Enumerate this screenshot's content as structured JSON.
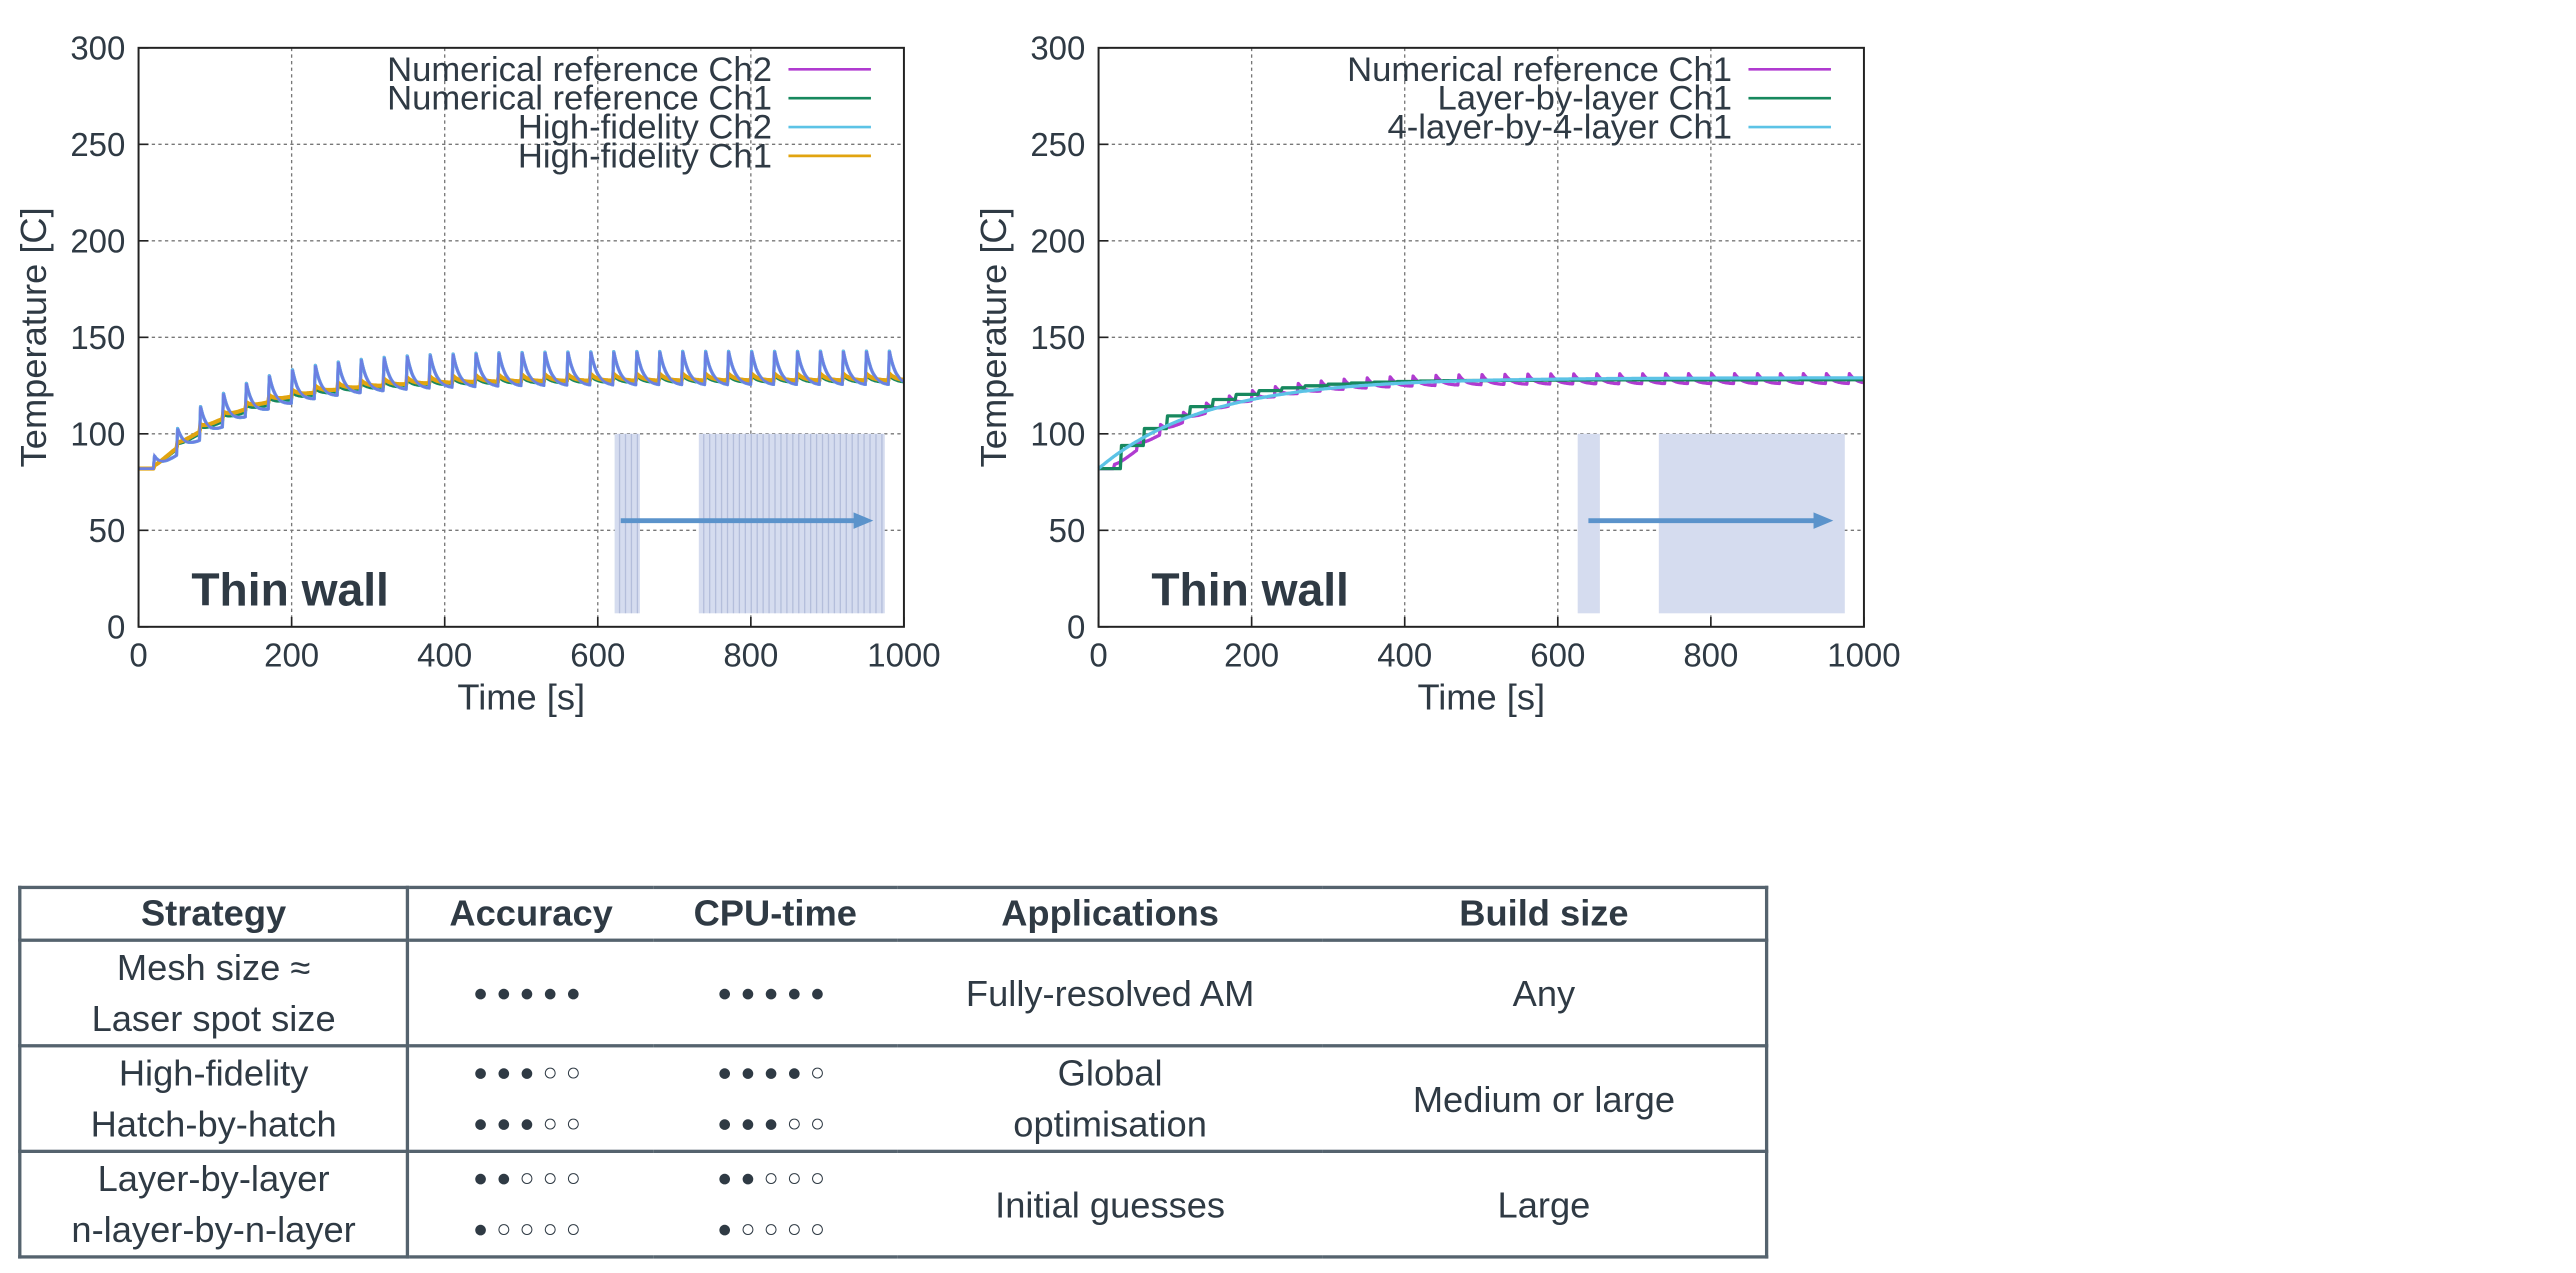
{
  "colors": {
    "purple": "#b03bd0",
    "green": "#17885e",
    "cyan": "#5cc3e6",
    "orange": "#e1a410",
    "blue_trace": "#6b7fe2",
    "highlight_fill": "#d5dcef",
    "arrow": "#5b93cb",
    "text": "#2f3a44"
  },
  "chart_data": [
    {
      "type": "line",
      "xlabel": "Time [s]",
      "ylabel": "Temperature [C]",
      "xlim": [
        0,
        1000
      ],
      "ylim": [
        0,
        300
      ],
      "xticks": [
        0,
        200,
        400,
        600,
        800,
        1000
      ],
      "yticks": [
        0,
        50,
        100,
        150,
        200,
        250,
        300
      ],
      "grid": true,
      "legend_position": "top-right",
      "annotation": "Thin wall",
      "inset": {
        "arrow_from": 630,
        "arrow_to": 960,
        "blocks": [
          [
            622,
            655
          ],
          [
            732,
            975
          ]
        ],
        "block_lines": true
      },
      "series": [
        {
          "name": "Numerical reference Ch2",
          "color": "purple",
          "width": 2,
          "model": {
            "start": 82,
            "plateau": 132,
            "tau": 110,
            "peak_amp": 20,
            "period": 30,
            "t0": 20
          }
        },
        {
          "name": "Numerical reference Ch1",
          "color": "green",
          "width": 2,
          "model": {
            "start": 82,
            "plateau": 128,
            "tau": 110,
            "peak_amp": 4,
            "period": 30,
            "t0": 20
          }
        },
        {
          "name": "High-fidelity Ch2",
          "color": "cyan",
          "width": 2,
          "model": {
            "start": 82,
            "plateau": 132,
            "tau": 110,
            "peak_amp": 20,
            "period": 30,
            "t0": 20
          }
        },
        {
          "name": "High-fidelity Ch1",
          "color": "orange",
          "width": 2.5,
          "model": {
            "start": 82,
            "plateau": 129,
            "tau": 105,
            "peak_amp": 4,
            "period": 30,
            "t0": 20
          }
        }
      ]
    },
    {
      "type": "line",
      "xlabel": "Time [s]",
      "ylabel": "Temperature [C]",
      "xlim": [
        0,
        1000
      ],
      "ylim": [
        0,
        300
      ],
      "xticks": [
        0,
        200,
        400,
        600,
        800,
        1000
      ],
      "yticks": [
        0,
        50,
        100,
        150,
        200,
        250,
        300
      ],
      "grid": true,
      "legend_position": "top-right",
      "annotation": "Thin wall",
      "inset": {
        "arrow_from": 640,
        "arrow_to": 960,
        "blocks": [
          [
            626,
            655
          ],
          [
            732,
            975
          ]
        ],
        "block_lines": false
      },
      "series": [
        {
          "name": "Numerical reference Ch1",
          "color": "purple",
          "width": 2,
          "model": {
            "start": 82,
            "plateau": 128,
            "tau": 110,
            "peak_amp": 6,
            "period": 30,
            "t0": 20
          }
        },
        {
          "name": "Layer-by-layer Ch1",
          "color": "green",
          "width": 2,
          "model": {
            "start": 82,
            "plateau": 128,
            "tau": 100,
            "peak_amp": 0,
            "step": 30,
            "t0": 0
          }
        },
        {
          "name": "4-layer-by-4-layer Ch1",
          "color": "cyan",
          "width": 2,
          "model": {
            "start": 82,
            "plateau": 129,
            "tau": 140,
            "peak_amp": 0,
            "step": 0,
            "t0": 0
          }
        }
      ]
    }
  ],
  "table": {
    "headers": [
      "Strategy",
      "Accuracy",
      "CPU-time",
      "Applications",
      "Build size"
    ],
    "rows": [
      {
        "strategy": [
          "Mesh size ≈",
          "Laser spot size"
        ],
        "accuracy": [
          "●●●●●"
        ],
        "cpu": [
          "●●●●●"
        ],
        "applications": [
          "Fully-resolved AM"
        ],
        "build_size": [
          "Any"
        ]
      },
      {
        "strategy": [
          "High-fidelity",
          "Hatch-by-hatch"
        ],
        "accuracy": [
          "●●●○○",
          "●●●○○"
        ],
        "cpu": [
          "●●●●○",
          "●●●○○"
        ],
        "applications": [
          "Global",
          "optimisation"
        ],
        "build_size": [
          "Medium or large"
        ]
      },
      {
        "strategy": [
          "Layer-by-layer",
          "n-layer-by-n-layer"
        ],
        "accuracy": [
          "●●○○○",
          "●○○○○"
        ],
        "cpu": [
          "●●○○○",
          "●○○○○"
        ],
        "applications": [
          "Initial guesses"
        ],
        "build_size": [
          "Large"
        ]
      }
    ]
  }
}
